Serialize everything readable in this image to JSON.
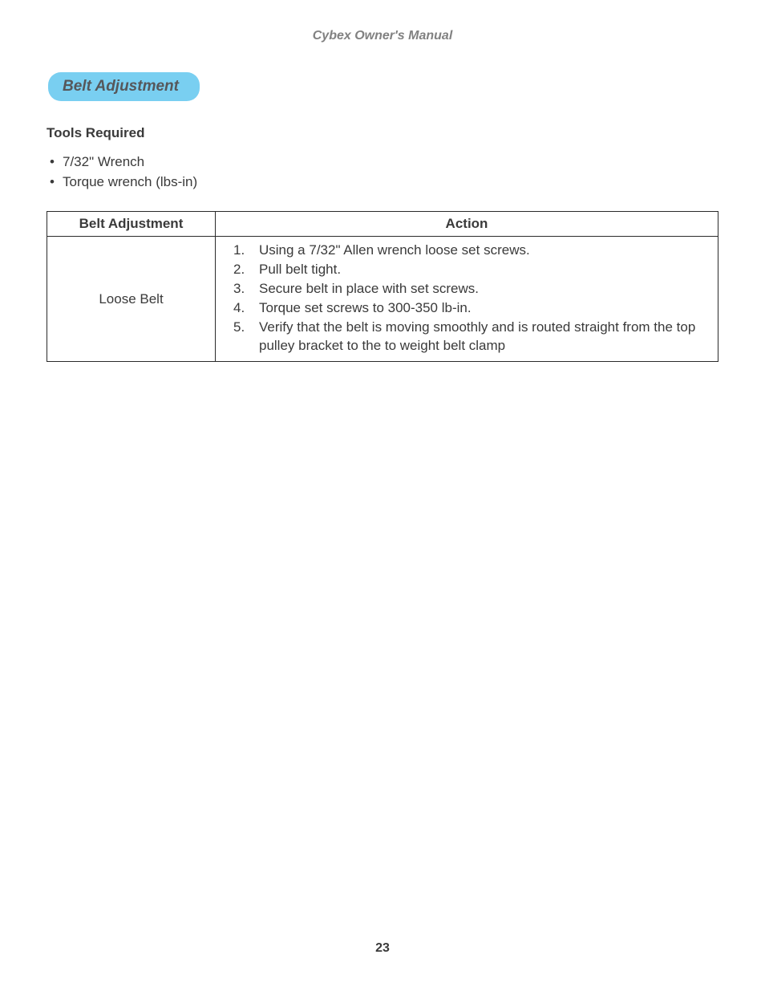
{
  "header": {
    "title": "Cybex Owner's Manual"
  },
  "section": {
    "badge_label": "Belt Adjustment",
    "badge_bg_color": "#79cff1",
    "badge_text_color": "#56575a"
  },
  "tools": {
    "heading": "Tools Required",
    "items": [
      "7/32\" Wrench",
      "Torque wrench (lbs-in)"
    ]
  },
  "table": {
    "columns": [
      "Belt Adjustment",
      "Action"
    ],
    "row": {
      "label": "Loose Belt",
      "steps": [
        "Using a 7/32\" Allen wrench loose set screws.",
        "Pull belt tight.",
        "Secure belt in place with set screws.",
        "Torque set screws to 300-350 lb-in.",
        "Verify that the belt is moving smoothly and is routed straight from the top pulley bracket to the to weight belt clamp"
      ]
    },
    "border_color": "#2a2a2a",
    "text_color": "#3a3a3a"
  },
  "page_number": "23",
  "typography": {
    "header_fontsize": 16,
    "badge_fontsize": 19,
    "body_fontsize": 17,
    "page_num_fontsize": 16
  },
  "colors": {
    "background": "#ffffff",
    "header_text": "#818181",
    "body_text": "#3a3a3a"
  }
}
